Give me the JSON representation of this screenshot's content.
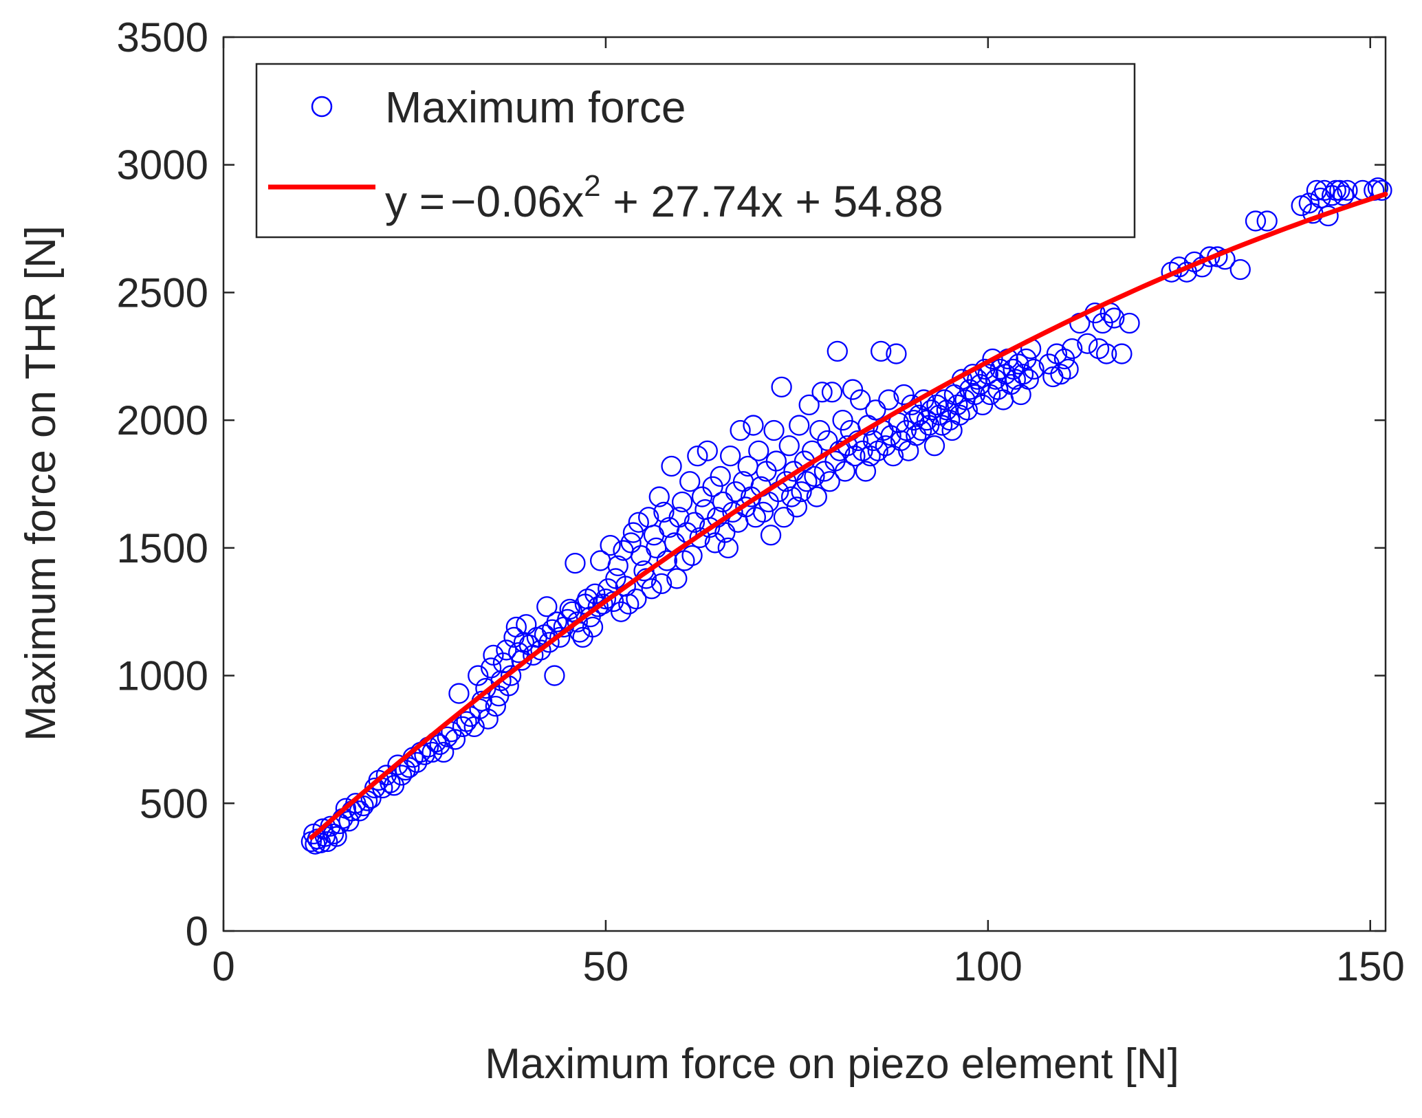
{
  "chart_data": {
    "type": "scatter",
    "xlabel": "Maximum force on piezo element [N]",
    "ylabel": "Maximum force on THR [N]",
    "xlim": [
      0,
      152
    ],
    "ylim": [
      0,
      3500
    ],
    "xticks": [
      0,
      50,
      100,
      150
    ],
    "yticks": [
      0,
      500,
      1000,
      1500,
      2000,
      2500,
      3000,
      3500
    ],
    "grid": false,
    "legend_position": "top-left",
    "legend": {
      "scatter_label": "Maximum force",
      "fit_label_prefix": "y =",
      "fit_label_main": "−0.06x",
      "fit_label_sup": "2",
      "fit_label_suffix": " + 27.74x + 54.88"
    },
    "colors": {
      "scatter": "#0000ff",
      "fit": "#ff0000",
      "axis": "#262626"
    },
    "fit": {
      "name": "y =−0.06x² + 27.74x + 54.88",
      "coefficients": {
        "a": -0.06,
        "b": 27.74,
        "c": 54.88
      },
      "x_range": [
        11.5,
        152
      ]
    },
    "series": [
      {
        "name": "Maximum force",
        "points": [
          [
            11.5,
            350
          ],
          [
            11.8,
            380
          ],
          [
            12.0,
            340
          ],
          [
            12.3,
            360
          ],
          [
            12.7,
            345
          ],
          [
            13.0,
            400
          ],
          [
            13.3,
            370
          ],
          [
            13.6,
            350
          ],
          [
            14.0,
            410
          ],
          [
            14.4,
            380
          ],
          [
            14.8,
            370
          ],
          [
            15.2,
            420
          ],
          [
            15.6,
            440
          ],
          [
            16.0,
            480
          ],
          [
            16.4,
            430
          ],
          [
            16.8,
            470
          ],
          [
            17.3,
            500
          ],
          [
            17.8,
            470
          ],
          [
            18.3,
            490
          ],
          [
            18.8,
            510
          ],
          [
            19.3,
            520
          ],
          [
            19.8,
            560
          ],
          [
            20.3,
            590
          ],
          [
            20.8,
            560
          ],
          [
            21.3,
            610
          ],
          [
            21.8,
            580
          ],
          [
            22.3,
            570
          ],
          [
            22.8,
            650
          ],
          [
            23.3,
            610
          ],
          [
            23.8,
            630
          ],
          [
            24.3,
            640
          ],
          [
            24.8,
            680
          ],
          [
            25.3,
            660
          ],
          [
            25.8,
            700
          ],
          [
            26.3,
            690
          ],
          [
            26.8,
            720
          ],
          [
            27.3,
            700
          ],
          [
            27.8,
            740
          ],
          [
            28.3,
            730
          ],
          [
            28.8,
            700
          ],
          [
            29.3,
            760
          ],
          [
            29.8,
            780
          ],
          [
            30.3,
            750
          ],
          [
            30.8,
            930
          ],
          [
            31.3,
            800
          ],
          [
            31.8,
            820
          ],
          [
            32.3,
            840
          ],
          [
            32.8,
            800
          ],
          [
            33.3,
            1000
          ],
          [
            33.5,
            870
          ],
          [
            33.8,
            900
          ],
          [
            34.3,
            950
          ],
          [
            34.6,
            830
          ],
          [
            35.0,
            1030
          ],
          [
            35.3,
            1080
          ],
          [
            35.6,
            880
          ],
          [
            36.0,
            920
          ],
          [
            36.3,
            980
          ],
          [
            36.6,
            1050
          ],
          [
            37.0,
            1100
          ],
          [
            37.3,
            960
          ],
          [
            37.6,
            1000
          ],
          [
            38.0,
            1150
          ],
          [
            38.3,
            1190
          ],
          [
            38.6,
            1090
          ],
          [
            39.0,
            1060
          ],
          [
            39.3,
            1130
          ],
          [
            39.6,
            1200
          ],
          [
            40.0,
            1120
          ],
          [
            40.5,
            1080
          ],
          [
            41.0,
            1150
          ],
          [
            41.5,
            1100
          ],
          [
            42.0,
            1160
          ],
          [
            42.3,
            1270
          ],
          [
            42.6,
            1130
          ],
          [
            43.0,
            1180
          ],
          [
            43.3,
            1000
          ],
          [
            43.6,
            1210
          ],
          [
            44.0,
            1150
          ],
          [
            44.5,
            1190
          ],
          [
            45.0,
            1220
          ],
          [
            45.3,
            1260
          ],
          [
            45.6,
            1250
          ],
          [
            46.0,
            1440
          ],
          [
            46.3,
            1210
          ],
          [
            46.6,
            1170
          ],
          [
            47.0,
            1150
          ],
          [
            47.3,
            1280
          ],
          [
            47.6,
            1300
          ],
          [
            48.0,
            1230
          ],
          [
            48.3,
            1190
          ],
          [
            48.6,
            1320
          ],
          [
            49.0,
            1270
          ],
          [
            49.3,
            1450
          ],
          [
            49.6,
            1280
          ],
          [
            50.0,
            1300
          ],
          [
            50.3,
            1340
          ],
          [
            50.6,
            1510
          ],
          [
            51.0,
            1290
          ],
          [
            51.3,
            1380
          ],
          [
            51.6,
            1430
          ],
          [
            52.0,
            1250
          ],
          [
            52.3,
            1490
          ],
          [
            52.6,
            1350
          ],
          [
            53.0,
            1280
          ],
          [
            53.3,
            1520
          ],
          [
            53.6,
            1560
          ],
          [
            54.0,
            1300
          ],
          [
            54.3,
            1600
          ],
          [
            54.6,
            1470
          ],
          [
            55.0,
            1410
          ],
          [
            55.3,
            1380
          ],
          [
            55.6,
            1620
          ],
          [
            56.0,
            1340
          ],
          [
            56.3,
            1550
          ],
          [
            56.6,
            1500
          ],
          [
            57.0,
            1700
          ],
          [
            57.3,
            1360
          ],
          [
            57.6,
            1640
          ],
          [
            58.0,
            1450
          ],
          [
            58.3,
            1580
          ],
          [
            58.6,
            1820
          ],
          [
            59.0,
            1520
          ],
          [
            59.3,
            1380
          ],
          [
            59.6,
            1620
          ],
          [
            60.0,
            1680
          ],
          [
            60.3,
            1450
          ],
          [
            60.6,
            1560
          ],
          [
            61.0,
            1760
          ],
          [
            61.3,
            1470
          ],
          [
            61.6,
            1600
          ],
          [
            62.0,
            1860
          ],
          [
            62.3,
            1540
          ],
          [
            62.6,
            1700
          ],
          [
            63.0,
            1650
          ],
          [
            63.3,
            1880
          ],
          [
            63.6,
            1580
          ],
          [
            64.0,
            1740
          ],
          [
            64.3,
            1520
          ],
          [
            64.6,
            1620
          ],
          [
            65.0,
            1780
          ],
          [
            65.3,
            1680
          ],
          [
            65.6,
            1560
          ],
          [
            66.0,
            1500
          ],
          [
            66.3,
            1860
          ],
          [
            66.6,
            1640
          ],
          [
            67.0,
            1720
          ],
          [
            67.3,
            1600
          ],
          [
            67.6,
            1960
          ],
          [
            68.0,
            1760
          ],
          [
            68.3,
            1660
          ],
          [
            68.6,
            1820
          ],
          [
            69.0,
            1700
          ],
          [
            69.3,
            1980
          ],
          [
            69.6,
            1620
          ],
          [
            70.0,
            1880
          ],
          [
            70.3,
            1740
          ],
          [
            70.6,
            1640
          ],
          [
            71.0,
            1800
          ],
          [
            71.3,
            1680
          ],
          [
            71.6,
            1550
          ],
          [
            72.0,
            1960
          ],
          [
            72.3,
            1840
          ],
          [
            72.6,
            1720
          ],
          [
            73.0,
            2130
          ],
          [
            73.3,
            1620
          ],
          [
            73.6,
            1760
          ],
          [
            74.0,
            1900
          ],
          [
            74.3,
            1700
          ],
          [
            74.6,
            1800
          ],
          [
            75.0,
            1660
          ],
          [
            75.3,
            1980
          ],
          [
            75.6,
            1720
          ],
          [
            76.0,
            1840
          ],
          [
            76.3,
            1760
          ],
          [
            76.6,
            2060
          ],
          [
            77.0,
            1880
          ],
          [
            77.3,
            1780
          ],
          [
            77.6,
            1700
          ],
          [
            78.0,
            1960
          ],
          [
            78.3,
            2110
          ],
          [
            78.6,
            1800
          ],
          [
            79.0,
            1920
          ],
          [
            79.3,
            1760
          ],
          [
            79.6,
            2110
          ],
          [
            80.0,
            1840
          ],
          [
            80.3,
            2270
          ],
          [
            80.6,
            1880
          ],
          [
            81.0,
            2000
          ],
          [
            81.3,
            1800
          ],
          [
            81.6,
            1900
          ],
          [
            82.0,
            1960
          ],
          [
            82.3,
            2120
          ],
          [
            82.6,
            1860
          ],
          [
            83.0,
            1920
          ],
          [
            83.3,
            2080
          ],
          [
            83.6,
            1880
          ],
          [
            84.0,
            1800
          ],
          [
            84.3,
            1980
          ],
          [
            84.6,
            1860
          ],
          [
            85.0,
            1920
          ],
          [
            85.3,
            2040
          ],
          [
            85.6,
            1880
          ],
          [
            86.0,
            2270
          ],
          [
            86.3,
            1960
          ],
          [
            86.6,
            1900
          ],
          [
            87.0,
            2080
          ],
          [
            87.3,
            1940
          ],
          [
            87.6,
            1860
          ],
          [
            88.0,
            2260
          ],
          [
            88.3,
            1990
          ],
          [
            88.6,
            1920
          ],
          [
            89.0,
            2100
          ],
          [
            89.3,
            1960
          ],
          [
            89.6,
            1880
          ],
          [
            90.0,
            2060
          ],
          [
            90.3,
            2000
          ],
          [
            90.6,
            1940
          ],
          [
            91.0,
            2020
          ],
          [
            91.3,
            1960
          ],
          [
            91.6,
            2080
          ],
          [
            92.0,
            2000
          ],
          [
            92.3,
            1980
          ],
          [
            92.6,
            2040
          ],
          [
            93.0,
            1900
          ],
          [
            93.3,
            2060
          ],
          [
            93.6,
            2020
          ],
          [
            94.0,
            1980
          ],
          [
            94.3,
            2080
          ],
          [
            94.6,
            2040
          ],
          [
            95.0,
            2000
          ],
          [
            95.3,
            1960
          ],
          [
            95.6,
            2100
          ],
          [
            96.0,
            2060
          ],
          [
            96.3,
            2020
          ],
          [
            96.6,
            2160
          ],
          [
            97.0,
            2080
          ],
          [
            97.3,
            2040
          ],
          [
            97.6,
            2120
          ],
          [
            98.0,
            2180
          ],
          [
            98.3,
            2100
          ],
          [
            98.6,
            2160
          ],
          [
            99.0,
            2140
          ],
          [
            99.3,
            2060
          ],
          [
            99.6,
            2200
          ],
          [
            100.0,
            2180
          ],
          [
            100.3,
            2100
          ],
          [
            100.6,
            2240
          ],
          [
            101.0,
            2160
          ],
          [
            101.3,
            2120
          ],
          [
            101.6,
            2200
          ],
          [
            102.0,
            2080
          ],
          [
            102.3,
            2180
          ],
          [
            102.6,
            2240
          ],
          [
            103.0,
            2140
          ],
          [
            103.3,
            2200
          ],
          [
            103.6,
            2160
          ],
          [
            104.0,
            2220
          ],
          [
            104.3,
            2100
          ],
          [
            104.6,
            2180
          ],
          [
            105.0,
            2240
          ],
          [
            105.3,
            2160
          ],
          [
            105.6,
            2280
          ],
          [
            106.0,
            2200
          ],
          [
            108.0,
            2220
          ],
          [
            108.5,
            2170
          ],
          [
            109.0,
            2260
          ],
          [
            109.5,
            2180
          ],
          [
            110.0,
            2240
          ],
          [
            110.5,
            2200
          ],
          [
            111.0,
            2280
          ],
          [
            112.0,
            2380
          ],
          [
            113.0,
            2300
          ],
          [
            114.0,
            2420
          ],
          [
            114.5,
            2280
          ],
          [
            115.0,
            2380
          ],
          [
            115.5,
            2260
          ],
          [
            116.0,
            2420
          ],
          [
            116.5,
            2400
          ],
          [
            117.5,
            2260
          ],
          [
            118.5,
            2380
          ],
          [
            124.0,
            2580
          ],
          [
            125.0,
            2600
          ],
          [
            126.0,
            2580
          ],
          [
            127.0,
            2620
          ],
          [
            128.0,
            2600
          ],
          [
            129.0,
            2640
          ],
          [
            130.0,
            2640
          ],
          [
            131.0,
            2630
          ],
          [
            133.0,
            2590
          ],
          [
            135.0,
            2780
          ],
          [
            136.5,
            2780
          ],
          [
            141.0,
            2840
          ],
          [
            142.0,
            2850
          ],
          [
            142.5,
            2810
          ],
          [
            143.0,
            2900
          ],
          [
            143.5,
            2870
          ],
          [
            144.0,
            2900
          ],
          [
            144.5,
            2800
          ],
          [
            145.0,
            2880
          ],
          [
            145.5,
            2900
          ],
          [
            146.0,
            2900
          ],
          [
            146.5,
            2880
          ],
          [
            147.0,
            2900
          ],
          [
            149.0,
            2900
          ],
          [
            150.5,
            2900
          ],
          [
            151.0,
            2910
          ],
          [
            151.5,
            2900
          ]
        ]
      }
    ]
  }
}
